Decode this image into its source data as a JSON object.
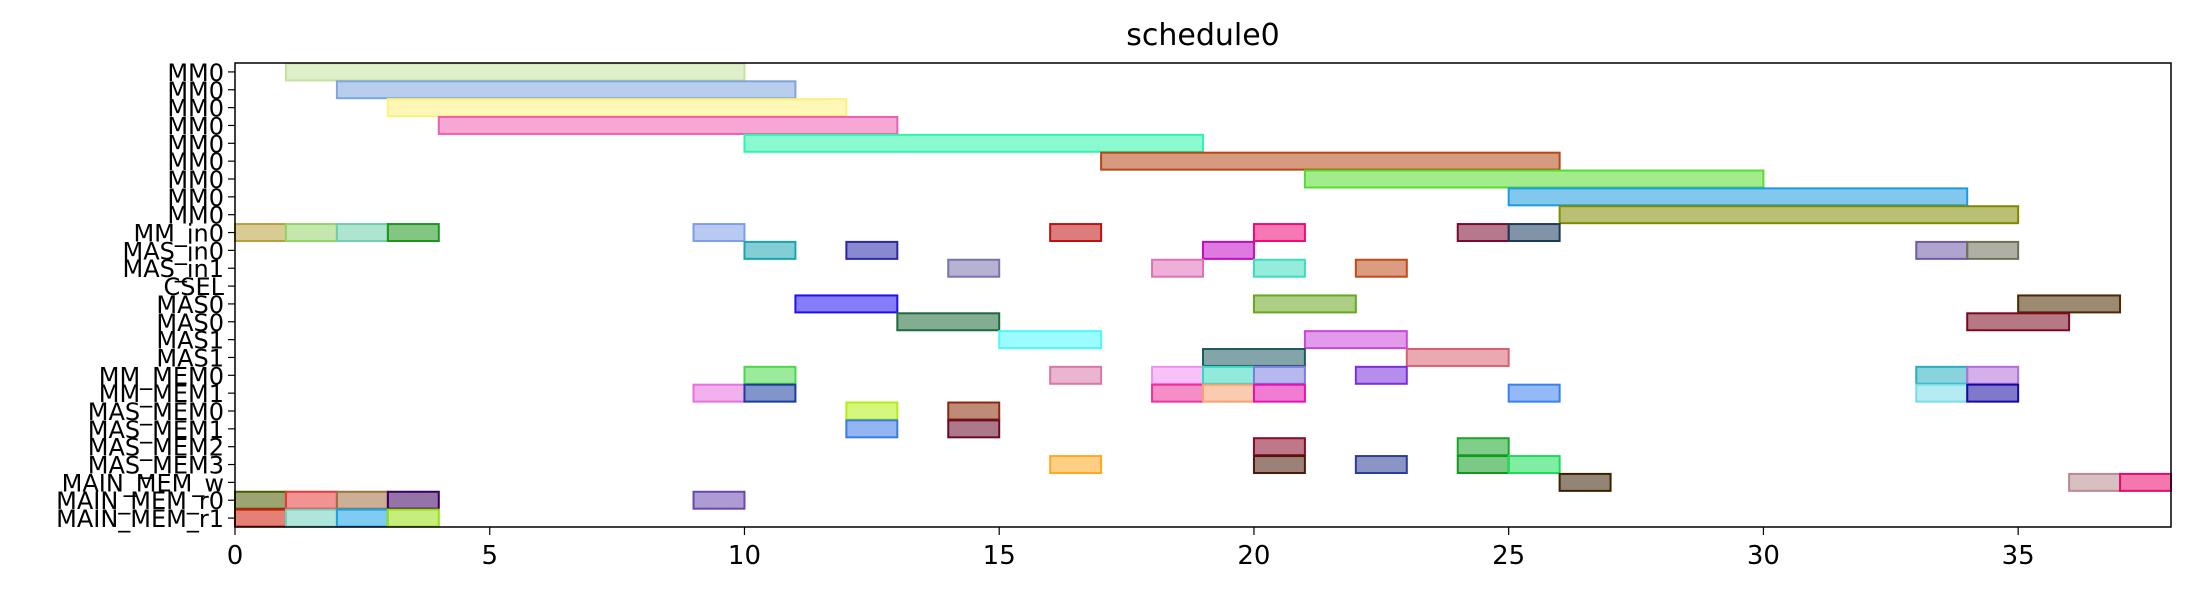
{
  "chart_data": {
    "type": "gantt",
    "title": "schedule0",
    "xlabel": "",
    "ylabel": "",
    "xlim": [
      0,
      38
    ],
    "x_ticks": [
      0,
      5,
      10,
      15,
      20,
      25,
      30,
      35
    ],
    "rows": [
      "MM0",
      "MM0",
      "MM0",
      "MM0",
      "MM0",
      "MM0",
      "MM0",
      "MM0",
      "MM0",
      "MM_in0",
      "MAS_in0",
      "MAS_in1",
      "CSEL",
      "MAS0",
      "MAS0",
      "MAS1",
      "MAS1",
      "MM_MEM0",
      "MM_MEM1",
      "MAS_MEM0",
      "MAS_MEM1",
      "MAS_MEM2",
      "MAS_MEM3",
      "MAIN_MEM_w",
      "MAIN_MEM_r0",
      "MAIN_MEM_r1"
    ],
    "row_labels": [
      "MM0",
      "MM0",
      "MM0",
      "MM0",
      "MM0",
      "MM0",
      "MM0",
      "MM0",
      "MM0",
      "MM_in0",
      "MAS_in0",
      "MAS_in1",
      "CSEL",
      "MAS0",
      "MAS0",
      "MAS1",
      "MAS1",
      "MM_MEM0",
      "MM_MEM1",
      "MAS_MEM0",
      "MAS_MEM1",
      "MAS_MEM2",
      "MAS_MEM3",
      "MAIN_MEM_w",
      "MAIN_MEM_r0",
      "MAIN_MEM_r1"
    ],
    "tasks": [
      {
        "row": 0,
        "start": 1,
        "end": 10,
        "color": "#c5e39e"
      },
      {
        "row": 1,
        "start": 2,
        "end": 11,
        "color": "#7fa6dc"
      },
      {
        "row": 2,
        "start": 3,
        "end": 12,
        "color": "#fff07a"
      },
      {
        "row": 3,
        "start": 4,
        "end": 13,
        "color": "#ef5fb0"
      },
      {
        "row": 4,
        "start": 10,
        "end": 19,
        "color": "#2ef5ab"
      },
      {
        "row": 5,
        "start": 17,
        "end": 26,
        "color": "#b54814"
      },
      {
        "row": 6,
        "start": 21,
        "end": 30,
        "color": "#56dc2e"
      },
      {
        "row": 7,
        "start": 25,
        "end": 34,
        "color": "#1b9be0"
      },
      {
        "row": 8,
        "start": 26,
        "end": 35,
        "color": "#7f8a00"
      },
      {
        "row": 9,
        "start": 0,
        "end": 1,
        "color": "#b8a03a"
      },
      {
        "row": 9,
        "start": 1,
        "end": 2,
        "color": "#92d46a"
      },
      {
        "row": 9,
        "start": 2,
        "end": 3,
        "color": "#6ed0aa"
      },
      {
        "row": 9,
        "start": 3,
        "end": 4,
        "color": "#1d961d"
      },
      {
        "row": 9,
        "start": 9,
        "end": 10,
        "color": "#7f9ee8"
      },
      {
        "row": 9,
        "start": 16,
        "end": 17,
        "color": "#c01010"
      },
      {
        "row": 9,
        "start": 20,
        "end": 21,
        "color": "#f00a78"
      },
      {
        "row": 9,
        "start": 24,
        "end": 25,
        "color": "#7a0a2e"
      },
      {
        "row": 9,
        "start": 25,
        "end": 26,
        "color": "#1a3b5c"
      },
      {
        "row": 10,
        "start": 10,
        "end": 11,
        "color": "#1aa6b0"
      },
      {
        "row": 10,
        "start": 12,
        "end": 13,
        "color": "#2a28a8"
      },
      {
        "row": 10,
        "start": 19,
        "end": 20,
        "color": "#c40ac4"
      },
      {
        "row": 10,
        "start": 33,
        "end": 34,
        "color": "#6e5aa6"
      },
      {
        "row": 10,
        "start": 34,
        "end": 35,
        "color": "#6e7058"
      },
      {
        "row": 11,
        "start": 14,
        "end": 15,
        "color": "#7a72ac"
      },
      {
        "row": 11,
        "start": 18,
        "end": 19,
        "color": "#e070b8"
      },
      {
        "row": 11,
        "start": 20,
        "end": 21,
        "color": "#3edcbe"
      },
      {
        "row": 11,
        "start": 22,
        "end": 23,
        "color": "#c04a1a"
      },
      {
        "row": 13,
        "start": 11,
        "end": 13,
        "color": "#2010f0"
      },
      {
        "row": 13,
        "start": 20,
        "end": 22,
        "color": "#68a820"
      },
      {
        "row": 13,
        "start": 35,
        "end": 37,
        "color": "#4a2a00"
      },
      {
        "row": 14,
        "start": 13,
        "end": 15,
        "color": "#1e6a3a"
      },
      {
        "row": 14,
        "start": 34,
        "end": 36,
        "color": "#7a0a20"
      },
      {
        "row": 15,
        "start": 15,
        "end": 17,
        "color": "#4afaff"
      },
      {
        "row": 15,
        "start": 21,
        "end": 23,
        "color": "#c848d8"
      },
      {
        "row": 16,
        "start": 19,
        "end": 21,
        "color": "#1e5a60"
      },
      {
        "row": 16,
        "start": 23,
        "end": 25,
        "color": "#d86070"
      },
      {
        "row": 17,
        "start": 10,
        "end": 11,
        "color": "#4ad848"
      },
      {
        "row": 17,
        "start": 16,
        "end": 17,
        "color": "#d878a8"
      },
      {
        "row": 17,
        "start": 18,
        "end": 19,
        "color": "#f090f0"
      },
      {
        "row": 17,
        "start": 19,
        "end": 20,
        "color": "#38d8c0"
      },
      {
        "row": 17,
        "start": 20,
        "end": 21,
        "color": "#7a7ee0"
      },
      {
        "row": 17,
        "start": 22,
        "end": 23,
        "color": "#7a30d8"
      },
      {
        "row": 17,
        "start": 33,
        "end": 34,
        "color": "#28aec0"
      },
      {
        "row": 17,
        "start": 34,
        "end": 35,
        "color": "#b070d8"
      },
      {
        "row": 18,
        "start": 9,
        "end": 10,
        "color": "#e870e0"
      },
      {
        "row": 18,
        "start": 10,
        "end": 11,
        "color": "#1a3ea0"
      },
      {
        "row": 18,
        "start": 18,
        "end": 19,
        "color": "#f0309a"
      },
      {
        "row": 18,
        "start": 19,
        "end": 20,
        "color": "#f8a070"
      },
      {
        "row": 18,
        "start": 20,
        "end": 21,
        "color": "#e810b0"
      },
      {
        "row": 18,
        "start": 25,
        "end": 26,
        "color": "#3a80f0"
      },
      {
        "row": 18,
        "start": 33,
        "end": 34,
        "color": "#78dce8"
      },
      {
        "row": 18,
        "start": 34,
        "end": 35,
        "color": "#180aa0"
      },
      {
        "row": 19,
        "start": 12,
        "end": 13,
        "color": "#b0f010"
      },
      {
        "row": 19,
        "start": 14,
        "end": 15,
        "color": "#8a2a0a"
      },
      {
        "row": 20,
        "start": 12,
        "end": 13,
        "color": "#3a7ae8"
      },
      {
        "row": 20,
        "start": 14,
        "end": 15,
        "color": "#6a0a28"
      },
      {
        "row": 21,
        "start": 24,
        "end": 25,
        "color": "#1aa62a"
      },
      {
        "row": 21,
        "start": 20,
        "end": 21,
        "color": "#8a0a28"
      },
      {
        "row": 22,
        "start": 24,
        "end": 25,
        "color": "#109a20"
      },
      {
        "row": 22,
        "start": 25,
        "end": 26,
        "color": "#1ade58"
      },
      {
        "row": 22,
        "start": 16,
        "end": 17,
        "color": "#ffa820"
      },
      {
        "row": 22,
        "start": 20,
        "end": 21,
        "color": "#4a1a0a"
      },
      {
        "row": 22,
        "start": 22,
        "end": 23,
        "color": "#2a3e98"
      },
      {
        "row": 23,
        "start": 26,
        "end": 27,
        "color": "#3a2000"
      },
      {
        "row": 23,
        "start": 36,
        "end": 37,
        "color": "#b88a90"
      },
      {
        "row": 23,
        "start": 37,
        "end": 38,
        "color": "#e80a6a"
      },
      {
        "row": 24,
        "start": 0,
        "end": 1,
        "color": "#4a5a00"
      },
      {
        "row": 24,
        "start": 1,
        "end": 2,
        "color": "#e83a3a"
      },
      {
        "row": 24,
        "start": 2,
        "end": 3,
        "color": "#a07040"
      },
      {
        "row": 24,
        "start": 3,
        "end": 4,
        "color": "#3a0060"
      },
      {
        "row": 24,
        "start": 9,
        "end": 10,
        "color": "#6a48b0"
      },
      {
        "row": 25,
        "start": 0,
        "end": 1,
        "color": "#d01808"
      },
      {
        "row": 25,
        "start": 1,
        "end": 2,
        "color": "#70d0c0"
      },
      {
        "row": 25,
        "start": 2,
        "end": 3,
        "color": "#18a0e8"
      },
      {
        "row": 25,
        "start": 3,
        "end": 4,
        "color": "#98e010"
      }
    ]
  }
}
